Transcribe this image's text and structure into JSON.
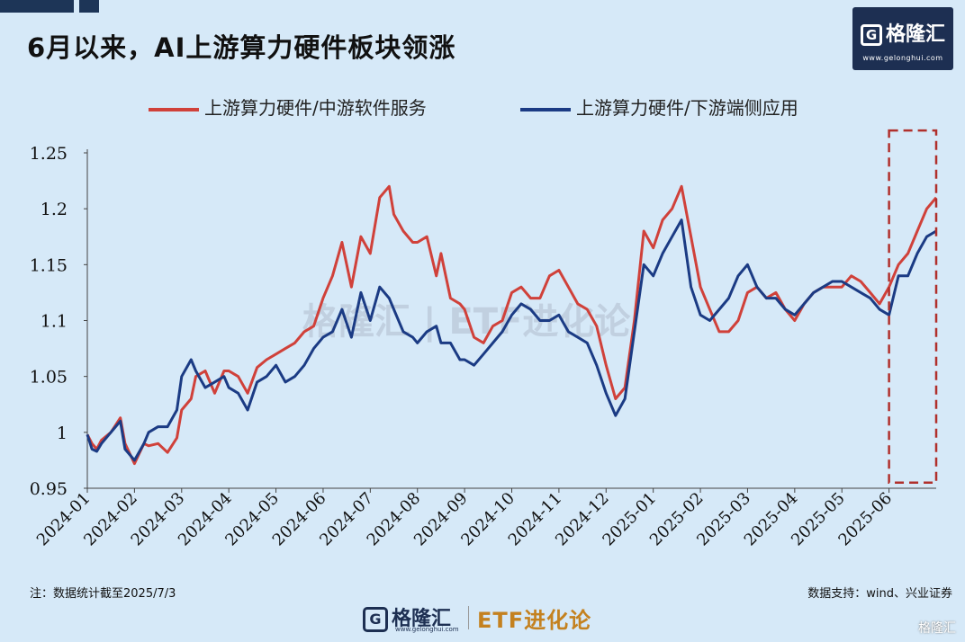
{
  "header": {
    "title": "6月以来，AI上游算力硬件板块领涨",
    "logo_text": "格隆汇",
    "logo_letter": "G",
    "logo_url": "www.gelonghui.com"
  },
  "watermark": "格隆汇 | ETF进化论",
  "chart_data": {
    "type": "line",
    "title": "6月以来，AI上游算力硬件板块领涨",
    "xlabel": "",
    "ylabel": "",
    "ylim": [
      0.95,
      1.25
    ],
    "yticks": [
      "0.95",
      "1",
      "1.05",
      "1.1",
      "1.15",
      "1.2",
      "1.25"
    ],
    "ytick_values": [
      0.95,
      1.0,
      1.05,
      1.1,
      1.15,
      1.2,
      1.25
    ],
    "xlim": [
      0,
      18
    ],
    "xticks": [
      "2024-01",
      "2024-02",
      "2024-03",
      "2024-04",
      "2024-05",
      "2024-06",
      "2024-07",
      "2024-08",
      "2024-09",
      "2024-10",
      "2024-11",
      "2024-12",
      "2025-01",
      "2025-02",
      "2025-03",
      "2025-04",
      "2025-05",
      "2025-06"
    ],
    "legend_position": "top",
    "highlight": {
      "label": "2025-06 onward",
      "x_range": [
        17.0,
        18.0
      ],
      "y_range": [
        0.955,
        1.27
      ],
      "color": "#b0302c",
      "style": "dashed"
    },
    "series": [
      {
        "name": "上游算力硬件/中游软件服务",
        "color": "#d0413a",
        "x": [
          0,
          0.1,
          0.2,
          0.3,
          0.5,
          0.7,
          0.8,
          1.0,
          1.2,
          1.3,
          1.5,
          1.7,
          1.9,
          2.0,
          2.2,
          2.3,
          2.5,
          2.7,
          2.9,
          3.0,
          3.2,
          3.4,
          3.6,
          3.8,
          4.0,
          4.2,
          4.4,
          4.6,
          4.8,
          5.0,
          5.2,
          5.4,
          5.6,
          5.8,
          6.0,
          6.2,
          6.4,
          6.5,
          6.7,
          6.9,
          7.0,
          7.2,
          7.4,
          7.5,
          7.7,
          7.9,
          8.0,
          8.2,
          8.4,
          8.6,
          8.8,
          9.0,
          9.2,
          9.4,
          9.6,
          9.8,
          10.0,
          10.2,
          10.4,
          10.6,
          10.8,
          11.0,
          11.2,
          11.4,
          11.6,
          11.8,
          12.0,
          12.2,
          12.4,
          12.6,
          12.8,
          13.0,
          13.2,
          13.4,
          13.6,
          13.8,
          14.0,
          14.2,
          14.4,
          14.6,
          14.8,
          15.0,
          15.2,
          15.4,
          15.6,
          15.8,
          16.0,
          16.2,
          16.4,
          16.6,
          16.8,
          17.0,
          17.2,
          17.4,
          17.6,
          17.8,
          18.0
        ],
        "y": [
          0.998,
          0.99,
          0.985,
          0.993,
          1.0,
          1.013,
          0.99,
          0.972,
          0.99,
          0.988,
          0.99,
          0.982,
          0.995,
          1.02,
          1.03,
          1.05,
          1.055,
          1.035,
          1.055,
          1.055,
          1.05,
          1.035,
          1.058,
          1.065,
          1.07,
          1.075,
          1.08,
          1.09,
          1.095,
          1.12,
          1.14,
          1.17,
          1.13,
          1.175,
          1.16,
          1.21,
          1.22,
          1.195,
          1.18,
          1.17,
          1.17,
          1.175,
          1.14,
          1.16,
          1.12,
          1.115,
          1.11,
          1.085,
          1.08,
          1.095,
          1.1,
          1.125,
          1.13,
          1.12,
          1.12,
          1.14,
          1.145,
          1.13,
          1.115,
          1.11,
          1.095,
          1.06,
          1.03,
          1.04,
          1.1,
          1.18,
          1.165,
          1.19,
          1.2,
          1.22,
          1.175,
          1.13,
          1.11,
          1.09,
          1.09,
          1.1,
          1.125,
          1.13,
          1.12,
          1.125,
          1.11,
          1.1,
          1.115,
          1.125,
          1.13,
          1.13,
          1.13,
          1.14,
          1.135,
          1.125,
          1.115,
          1.13,
          1.15,
          1.16,
          1.18,
          1.2,
          1.21
        ]
      },
      {
        "name": "上游算力硬件/下游端侧应用",
        "color": "#1b3b84",
        "x": [
          0,
          0.1,
          0.2,
          0.3,
          0.5,
          0.7,
          0.8,
          1.0,
          1.2,
          1.3,
          1.5,
          1.7,
          1.9,
          2.0,
          2.2,
          2.3,
          2.5,
          2.7,
          2.9,
          3.0,
          3.2,
          3.4,
          3.6,
          3.8,
          4.0,
          4.2,
          4.4,
          4.6,
          4.8,
          5.0,
          5.2,
          5.4,
          5.6,
          5.8,
          6.0,
          6.2,
          6.4,
          6.5,
          6.7,
          6.9,
          7.0,
          7.2,
          7.4,
          7.5,
          7.7,
          7.9,
          8.0,
          8.2,
          8.4,
          8.6,
          8.8,
          9.0,
          9.2,
          9.4,
          9.6,
          9.8,
          10.0,
          10.2,
          10.4,
          10.6,
          10.8,
          11.0,
          11.2,
          11.4,
          11.6,
          11.8,
          12.0,
          12.2,
          12.4,
          12.6,
          12.8,
          13.0,
          13.2,
          13.4,
          13.6,
          13.8,
          14.0,
          14.2,
          14.4,
          14.6,
          14.8,
          15.0,
          15.2,
          15.4,
          15.6,
          15.8,
          16.0,
          16.2,
          16.4,
          16.6,
          16.8,
          17.0,
          17.2,
          17.4,
          17.6,
          17.8,
          18.0
        ],
        "y": [
          0.998,
          0.985,
          0.983,
          0.99,
          1.0,
          1.01,
          0.985,
          0.975,
          0.99,
          1.0,
          1.005,
          1.005,
          1.02,
          1.05,
          1.065,
          1.055,
          1.04,
          1.045,
          1.05,
          1.04,
          1.035,
          1.02,
          1.045,
          1.05,
          1.06,
          1.045,
          1.05,
          1.06,
          1.075,
          1.085,
          1.09,
          1.11,
          1.085,
          1.125,
          1.1,
          1.13,
          1.12,
          1.11,
          1.09,
          1.085,
          1.08,
          1.09,
          1.095,
          1.08,
          1.08,
          1.065,
          1.065,
          1.06,
          1.07,
          1.08,
          1.09,
          1.105,
          1.115,
          1.11,
          1.1,
          1.1,
          1.105,
          1.09,
          1.085,
          1.08,
          1.06,
          1.035,
          1.015,
          1.03,
          1.09,
          1.15,
          1.14,
          1.16,
          1.175,
          1.19,
          1.13,
          1.105,
          1.1,
          1.11,
          1.12,
          1.14,
          1.15,
          1.13,
          1.12,
          1.12,
          1.11,
          1.105,
          1.115,
          1.125,
          1.13,
          1.135,
          1.135,
          1.13,
          1.125,
          1.12,
          1.11,
          1.105,
          1.14,
          1.14,
          1.16,
          1.175,
          1.18
        ]
      }
    ]
  },
  "footer": {
    "note": "注：数据统计截至2025/7/3",
    "source": "数据支持：wind、兴业证券",
    "brand_logo": "格隆汇",
    "brand_letter": "G",
    "brand_url": "www.gelonghui.com",
    "brand_etf": "ETF进化论",
    "corner_watermark": "格隆汇"
  }
}
